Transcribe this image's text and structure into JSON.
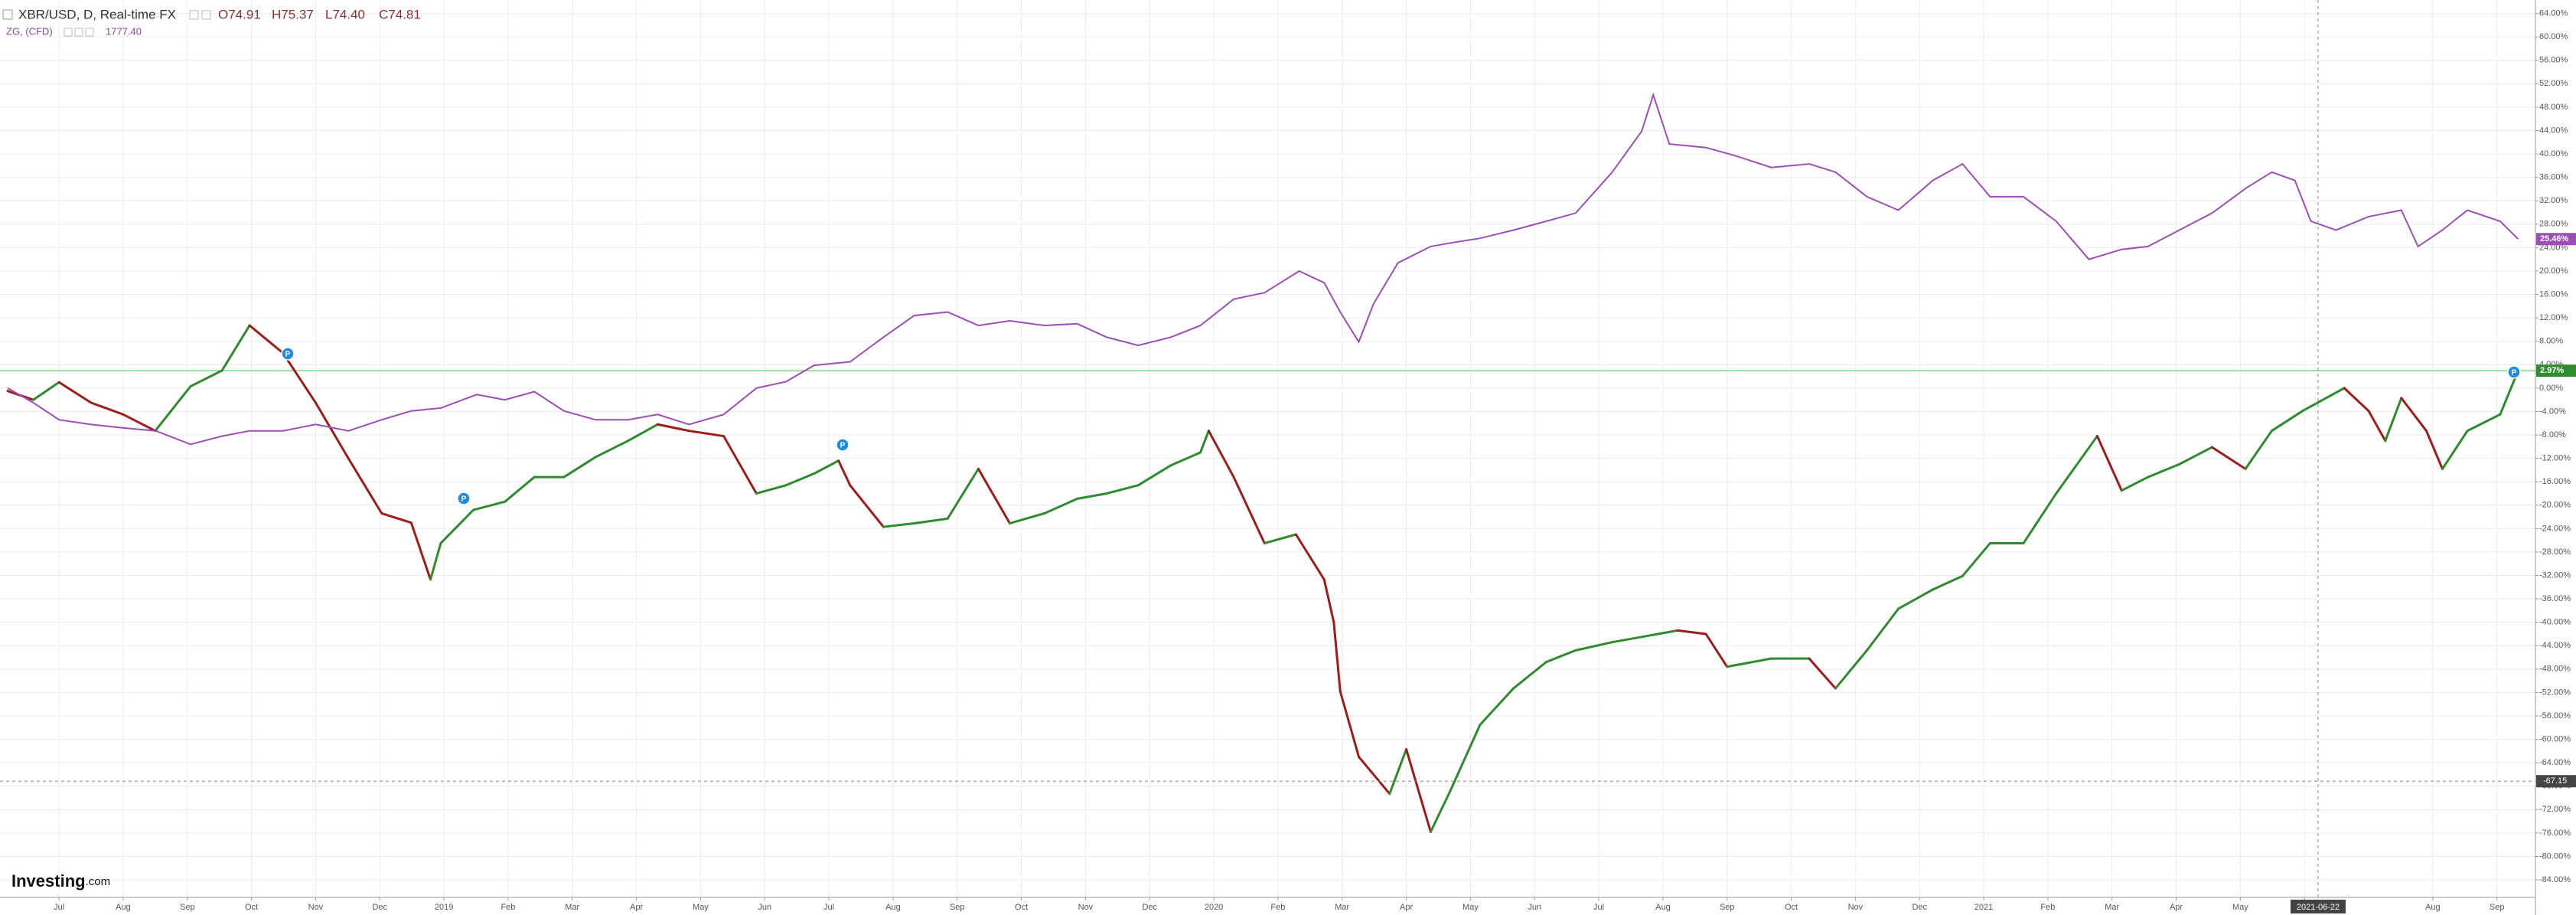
{
  "header": {
    "symbol": "XBR/USD, D, Real-time FX",
    "open": "O74.91",
    "high": "H75.37",
    "low": "L74.40",
    "close": "C74.81",
    "compare_symbol": "ZG, (CFD)",
    "compare_price": "1777.40"
  },
  "logo": {
    "name": "Investing",
    "suffix": ".com"
  },
  "marker_icon": "P",
  "chart_data": {
    "type": "line",
    "xlim": [
      -0.92,
      38.6
    ],
    "ylim": [
      -87,
      66.3
    ],
    "grid": true,
    "xticks": [
      {
        "value": 0,
        "label": "Jul"
      },
      {
        "value": 1,
        "label": "Aug"
      },
      {
        "value": 2,
        "label": "Sep"
      },
      {
        "value": 3,
        "label": "Oct"
      },
      {
        "value": 4,
        "label": "Nov"
      },
      {
        "value": 5,
        "label": "Dec"
      },
      {
        "value": 6,
        "label": "2019"
      },
      {
        "value": 7,
        "label": "Feb"
      },
      {
        "value": 8,
        "label": "Mar"
      },
      {
        "value": 9,
        "label": "Apr"
      },
      {
        "value": 10,
        "label": "May"
      },
      {
        "value": 11,
        "label": "Jun"
      },
      {
        "value": 12,
        "label": "Jul"
      },
      {
        "value": 13,
        "label": "Aug"
      },
      {
        "value": 14,
        "label": "Sep"
      },
      {
        "value": 15,
        "label": "Oct"
      },
      {
        "value": 16,
        "label": "Nov"
      },
      {
        "value": 17,
        "label": "Dec"
      },
      {
        "value": 18,
        "label": "2020"
      },
      {
        "value": 19,
        "label": "Feb"
      },
      {
        "value": 20,
        "label": "Mar"
      },
      {
        "value": 21,
        "label": "Apr"
      },
      {
        "value": 22,
        "label": "May"
      },
      {
        "value": 23,
        "label": "Jun"
      },
      {
        "value": 24,
        "label": "Jul"
      },
      {
        "value": 25,
        "label": "Aug"
      },
      {
        "value": 26,
        "label": "Sep"
      },
      {
        "value": 27,
        "label": "Oct"
      },
      {
        "value": 28,
        "label": "Nov"
      },
      {
        "value": 29,
        "label": "Dec"
      },
      {
        "value": 30,
        "label": "2021"
      },
      {
        "value": 31,
        "label": "Feb"
      },
      {
        "value": 32,
        "label": "Mar"
      },
      {
        "value": 33,
        "label": "Apr"
      },
      {
        "value": 34,
        "label": "May"
      },
      {
        "value": 35,
        "label": "Jun"
      },
      {
        "value": 37,
        "label": "Aug"
      },
      {
        "value": 38,
        "label": "Sep"
      }
    ],
    "yticks": [
      {
        "value": 64,
        "label": "64.00%"
      },
      {
        "value": 60,
        "label": "60.00%"
      },
      {
        "value": 56,
        "label": "56.00%"
      },
      {
        "value": 52,
        "label": "52.00%"
      },
      {
        "value": 48,
        "label": "48.00%"
      },
      {
        "value": 44,
        "label": "44.00%"
      },
      {
        "value": 40,
        "label": "40.00%"
      },
      {
        "value": 36,
        "label": "36.00%"
      },
      {
        "value": 32,
        "label": "32.00%"
      },
      {
        "value": 28,
        "label": "28.00%"
      },
      {
        "value": 24,
        "label": "24.00%"
      },
      {
        "value": 20,
        "label": "20.00%"
      },
      {
        "value": 16,
        "label": "16.00%"
      },
      {
        "value": 12,
        "label": "12.00%"
      },
      {
        "value": 8,
        "label": "8.00%"
      },
      {
        "value": 4,
        "label": "4.00%"
      },
      {
        "value": 0,
        "label": "0.00%"
      },
      {
        "value": -4,
        "label": "-4.00%"
      },
      {
        "value": -8,
        "label": "-8.00%"
      },
      {
        "value": -12,
        "label": "-12.00%"
      },
      {
        "value": -16,
        "label": "-16.00%"
      },
      {
        "value": -20,
        "label": "-20.00%"
      },
      {
        "value": -24,
        "label": "-24.00%"
      },
      {
        "value": -28,
        "label": "-28.00%"
      },
      {
        "value": -32,
        "label": "-32.00%"
      },
      {
        "value": -36,
        "label": "-36.00%"
      },
      {
        "value": -40,
        "label": "-40.00%"
      },
      {
        "value": -44,
        "label": "-44.00%"
      },
      {
        "value": -48,
        "label": "-48.00%"
      },
      {
        "value": -52,
        "label": "-52.00%"
      },
      {
        "value": -56,
        "label": "-56.00%"
      },
      {
        "value": -60,
        "label": "-60.00%"
      },
      {
        "value": -64,
        "label": "-64.00%"
      },
      {
        "value": -68,
        "label": "-68.00%"
      },
      {
        "value": -72,
        "label": "-72.00%"
      },
      {
        "value": -76,
        "label": "-76.00%"
      },
      {
        "value": -80,
        "label": "-80.00%"
      },
      {
        "value": -84,
        "label": "-84.00%"
      }
    ],
    "series": [
      {
        "style": "updown",
        "color": "#2e8b2e",
        "down_color": "#a01b1b",
        "price_line_color": "#7ddc7d",
        "last_value_label": "2.97%",
        "x": [
          -0.8,
          -0.4,
          0,
          0.5,
          1.0,
          1.5,
          2.05,
          2.54,
          2.97,
          3.49,
          4.0,
          4.51,
          5.03,
          5.49,
          5.79,
          5.95,
          6.46,
          6.95,
          7.41,
          7.87,
          8.36,
          8.87,
          9.33,
          9.82,
          10.36,
          10.87,
          11.33,
          11.77,
          12.15,
          12.33,
          12.85,
          13.33,
          13.85,
          14.33,
          14.82,
          15.36,
          15.87,
          16.33,
          16.82,
          17.33,
          17.79,
          17.92,
          18.31,
          18.79,
          19.28,
          19.72,
          19.87,
          19.97,
          20.26,
          20.74,
          21.0,
          21.38,
          21.69,
          22.15,
          22.67,
          23.18,
          23.64,
          24.21,
          24.67,
          25.23,
          25.67,
          26.0,
          26.69,
          27.28,
          27.69,
          28.18,
          28.67,
          29.21,
          29.67,
          30.1,
          30.62,
          31.13,
          31.77,
          32.15,
          32.56,
          33.05,
          33.56,
          34.08,
          34.49,
          34.97,
          35.62,
          36.0,
          36.26,
          36.51,
          36.9,
          37.15,
          37.54,
          38.05,
          38.33
        ],
        "values": [
          -0.5,
          -2,
          1,
          -2.5,
          -4.5,
          -7.3,
          0.3,
          3,
          10.7,
          6,
          -2.5,
          -12,
          -21.4,
          -23,
          -32.7,
          -26.5,
          -20.8,
          -19.4,
          -15.2,
          -15.2,
          -11.8,
          -9,
          -6.2,
          -7.3,
          -8.2,
          -18,
          -16.6,
          -14.6,
          -12.4,
          -16.6,
          -23.7,
          -23.1,
          -22.3,
          -13.8,
          -23.1,
          -21.4,
          -18.9,
          -18,
          -16.6,
          -13.2,
          -11,
          -7.3,
          -15.2,
          -26.5,
          -25,
          -32.7,
          -40,
          -51.8,
          -63,
          -69.3,
          -61.7,
          -75.8,
          -68.7,
          -57.5,
          -51.3,
          -46.8,
          -44.8,
          -43.4,
          -42.5,
          -41.4,
          -42,
          -47.6,
          -46.2,
          -46.2,
          -51.3,
          -44.8,
          -37.7,
          -34.4,
          -32.1,
          -26.5,
          -26.5,
          -18,
          -8.2,
          -17.5,
          -15.2,
          -13,
          -10.1,
          -13.8,
          -7.3,
          -3.9,
          0,
          -3.9,
          -9,
          -1.7,
          -7.3,
          -13.8,
          -7.3,
          -4.5,
          2.97
        ]
      },
      {
        "style": "line",
        "color": "#9b4fb5",
        "last_value_label": "25.46%",
        "x": [
          -0.8,
          -0.4,
          0,
          0.49,
          1.0,
          1.51,
          2.05,
          2.54,
          2.97,
          3.49,
          4.0,
          4.51,
          5.03,
          5.49,
          5.95,
          6.51,
          6.95,
          7.41,
          7.87,
          8.36,
          8.87,
          9.33,
          9.82,
          10.36,
          10.87,
          11.33,
          11.77,
          12.33,
          12.85,
          13.33,
          13.85,
          14.33,
          14.82,
          15.36,
          15.87,
          16.33,
          16.82,
          17.33,
          17.79,
          18.31,
          18.79,
          19.33,
          19.72,
          19.97,
          20.26,
          20.49,
          20.87,
          21.38,
          21.69,
          22.15,
          22.67,
          23.18,
          23.64,
          24.21,
          24.67,
          24.85,
          25.1,
          25.67,
          26.13,
          26.69,
          27.28,
          27.69,
          28.18,
          28.67,
          29.21,
          29.67,
          30.1,
          30.62,
          31.13,
          31.64,
          32.15,
          32.56,
          33.05,
          33.56,
          34.08,
          34.49,
          34.85,
          35.1,
          35.49,
          36.0,
          36.51,
          36.77,
          37.15,
          37.54,
          38.05,
          38.33
        ],
        "values": [
          0,
          -2.5,
          -5.4,
          -6.2,
          -6.8,
          -7.3,
          -9.6,
          -8.2,
          -7.3,
          -7.3,
          -6.2,
          -7.3,
          -5.4,
          -3.9,
          -3.4,
          -1.1,
          -2,
          -0.6,
          -3.9,
          -5.4,
          -5.4,
          -4.5,
          -6.2,
          -4.5,
          0,
          1.1,
          3.9,
          4.5,
          8.7,
          12.4,
          13,
          10.7,
          11.5,
          10.7,
          11,
          8.7,
          7.3,
          8.7,
          10.7,
          15.2,
          16.3,
          20,
          18,
          13,
          7.9,
          14.4,
          21.4,
          24.2,
          24.8,
          25.6,
          27,
          28.5,
          29.9,
          36.9,
          43.9,
          50.1,
          41.7,
          41.1,
          39.7,
          37.7,
          38.3,
          36.9,
          32.7,
          30.4,
          35.5,
          38.3,
          32.7,
          32.7,
          28.5,
          22,
          23.7,
          24.2,
          27,
          29.9,
          34.1,
          36.9,
          35.5,
          28.5,
          27,
          29.3,
          30.4,
          24.2,
          27,
          30.4,
          28.5,
          25.46
        ]
      }
    ],
    "crosshair": {
      "date": "2021-06-22",
      "value": -67.15
    }
  }
}
